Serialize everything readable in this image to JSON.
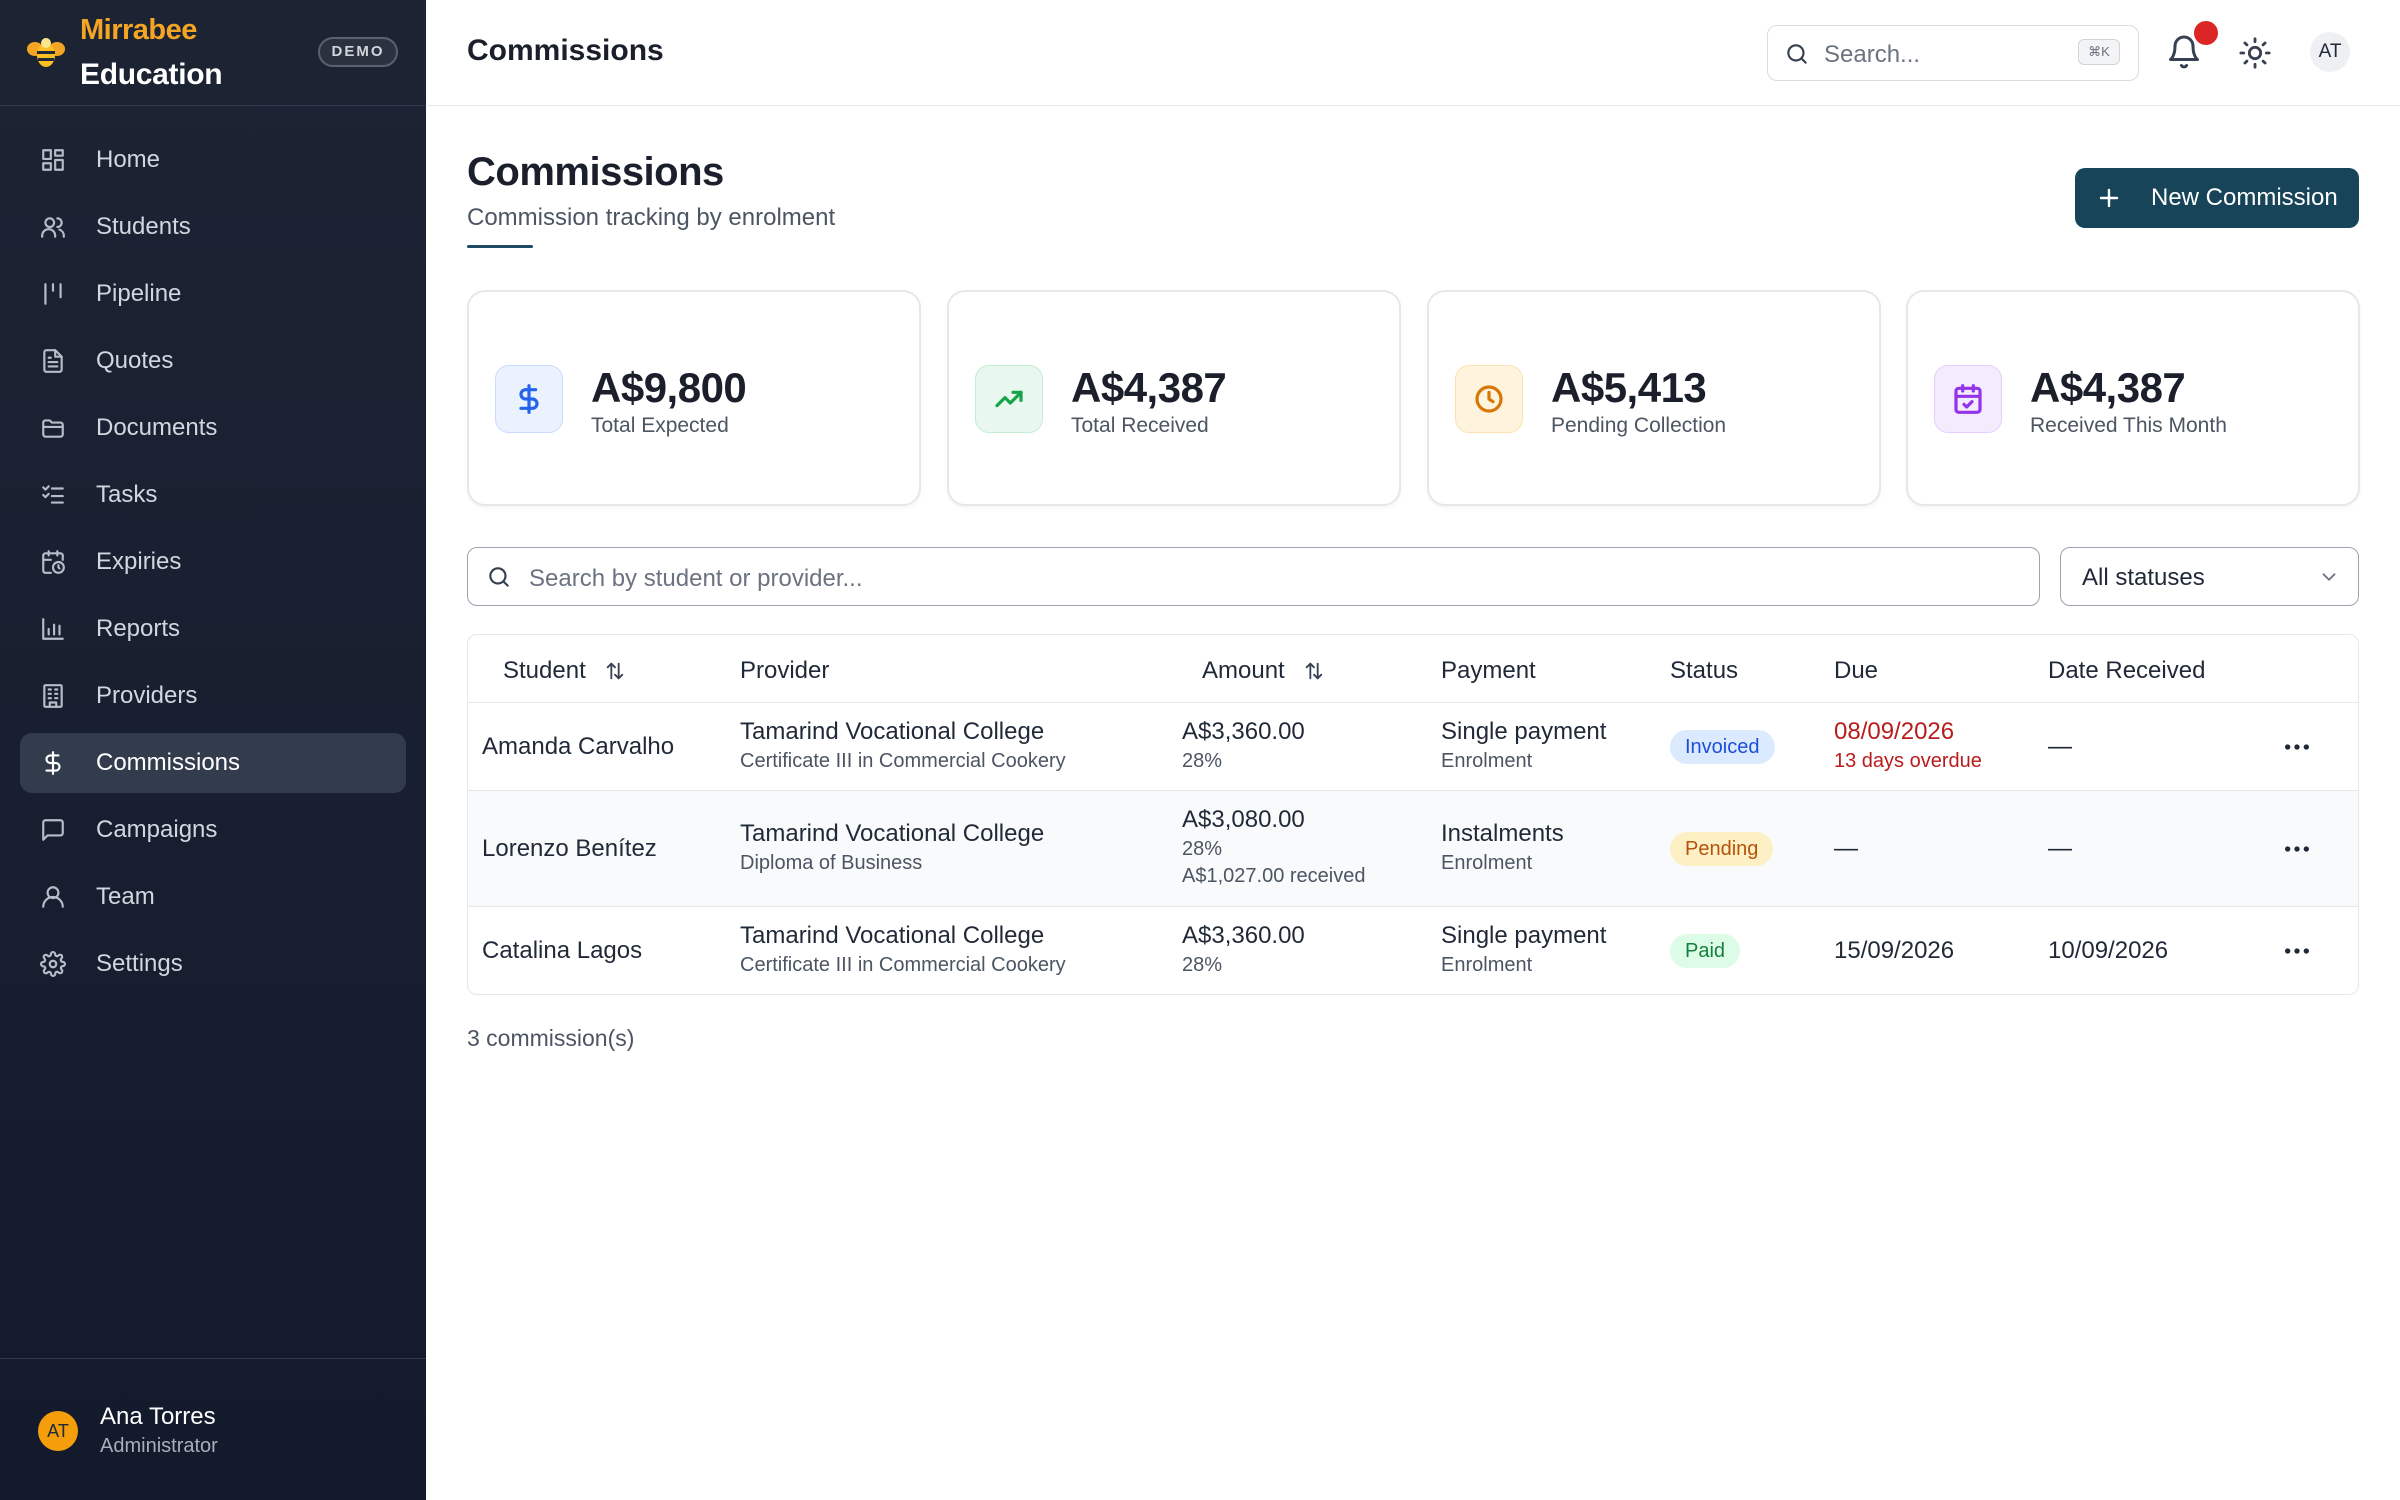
{
  "brand": {
    "name_line1": "Mirrabee",
    "name_line2": "Education",
    "badge": "DEMO"
  },
  "sidebar": {
    "items": [
      {
        "label": "Home",
        "icon": "grid-icon"
      },
      {
        "label": "Students",
        "icon": "users-icon"
      },
      {
        "label": "Pipeline",
        "icon": "pipeline-icon"
      },
      {
        "label": "Quotes",
        "icon": "file-text-icon"
      },
      {
        "label": "Documents",
        "icon": "folder-icon"
      },
      {
        "label": "Tasks",
        "icon": "checklist-icon"
      },
      {
        "label": "Expiries",
        "icon": "calendar-clock-icon"
      },
      {
        "label": "Reports",
        "icon": "bar-chart-icon"
      },
      {
        "label": "Providers",
        "icon": "building-icon"
      },
      {
        "label": "Commissions",
        "icon": "dollar-icon"
      },
      {
        "label": "Campaigns",
        "icon": "message-icon"
      },
      {
        "label": "Team",
        "icon": "user-icon"
      },
      {
        "label": "Settings",
        "icon": "gear-icon"
      }
    ],
    "active": "Commissions",
    "user": {
      "initials": "AT",
      "name": "Ana Torres",
      "role": "Administrator"
    }
  },
  "topbar": {
    "title": "Commissions",
    "search_placeholder": "Search...",
    "shortcut": "⌘K",
    "avatar_initials": "AT"
  },
  "page": {
    "title": "Commissions",
    "subtitle": "Commission tracking by enrolment",
    "new_button": "New Commission"
  },
  "stats": [
    {
      "value": "A$9,800",
      "label": "Total Expected",
      "icon": "dollar-icon",
      "color": "#2563eb",
      "bg": "#eaf2fe"
    },
    {
      "value": "A$4,387",
      "label": "Total Received",
      "icon": "trending-up-icon",
      "color": "#16a34a",
      "bg": "#e8f8ee"
    },
    {
      "value": "A$5,413",
      "label": "Pending Collection",
      "icon": "clock-icon",
      "color": "#d97706",
      "bg": "#fef4de"
    },
    {
      "value": "A$4,387",
      "label": "Received This Month",
      "icon": "calendar-check-icon",
      "color": "#9333ea",
      "bg": "#f5ebfe"
    }
  ],
  "filters": {
    "search_placeholder": "Search by student or provider...",
    "status_value": "All statuses"
  },
  "table": {
    "columns": [
      "Student",
      "Provider",
      "Amount",
      "Payment",
      "Status",
      "Due",
      "Date Received"
    ],
    "rows": [
      {
        "student": "Amanda Carvalho",
        "provider": "Tamarind Vocational College",
        "course": "Certificate III in Commercial Cookery",
        "amount": "A$3,360.00",
        "rate": "28%",
        "received_note": "",
        "payment": "Single payment",
        "payment_type": "Enrolment",
        "status": "Invoiced",
        "due": "08/09/2026",
        "due_note": "13 days overdue",
        "date_received": "—"
      },
      {
        "student": "Lorenzo Benítez",
        "provider": "Tamarind Vocational College",
        "course": "Diploma of Business",
        "amount": "A$3,080.00",
        "rate": "28%",
        "received_note": "A$1,027.00 received",
        "payment": "Instalments",
        "payment_type": "Enrolment",
        "status": "Pending",
        "due": "—",
        "due_note": "",
        "date_received": "—"
      },
      {
        "student": "Catalina Lagos",
        "provider": "Tamarind Vocational College",
        "course": "Certificate III in Commercial Cookery",
        "amount": "A$3,360.00",
        "rate": "28%",
        "received_note": "",
        "payment": "Single payment",
        "payment_type": "Enrolment",
        "status": "Paid",
        "due": "15/09/2026",
        "due_note": "",
        "date_received": "10/09/2026"
      }
    ]
  },
  "footer": {
    "count": "3 commission(s)"
  }
}
